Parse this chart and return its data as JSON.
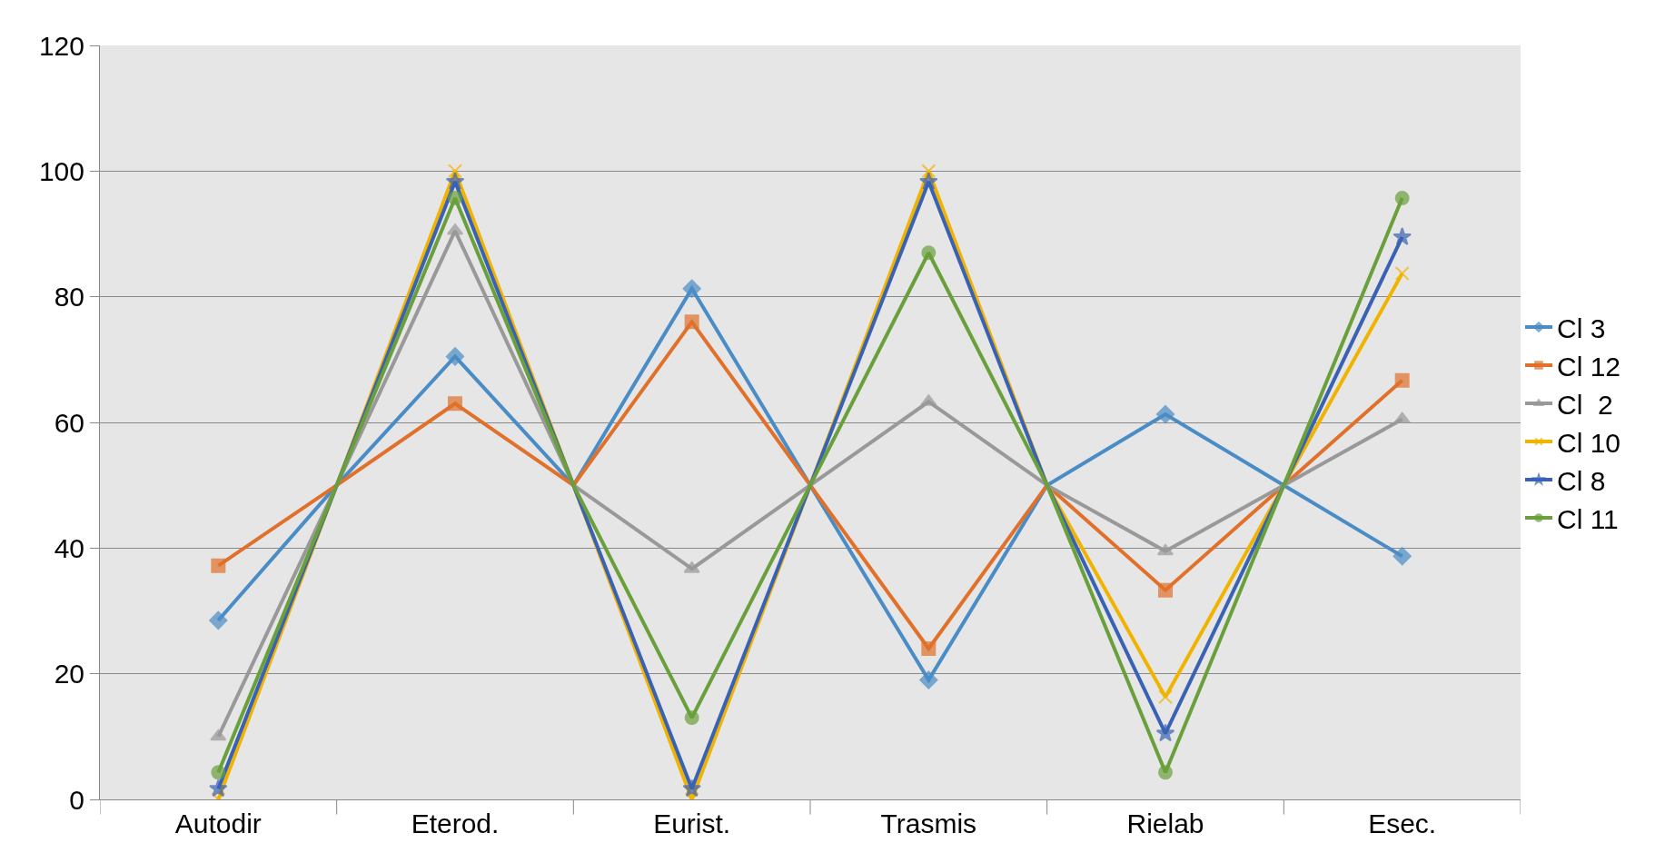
{
  "chart_data": {
    "type": "line",
    "categories": [
      "Autodir",
      null,
      "Eterod.",
      null,
      "Eurist.",
      null,
      "Trasmis",
      null,
      "Rielab",
      null,
      "Esec."
    ],
    "series": [
      {
        "name": "Cl 3",
        "color": "#4a8cc6",
        "marker": "diamond",
        "values": [
          28.5,
          50,
          70.5,
          50,
          81.3,
          50,
          19,
          50,
          61.3,
          50,
          38.7
        ]
      },
      {
        "name": "Cl 12",
        "color": "#e0702a",
        "marker": "square",
        "values": [
          37.2,
          50,
          63,
          50,
          76,
          50,
          24,
          50,
          33.3,
          50,
          66.7
        ]
      },
      {
        "name": "Cl  2",
        "color": "#999999",
        "marker": "triangle",
        "values": [
          10,
          50,
          90.5,
          50,
          36.7,
          50,
          63.3,
          50,
          39.5,
          50,
          60.5
        ]
      },
      {
        "name": "Cl 10",
        "color": "#f0b400",
        "marker": "cross",
        "values": [
          0,
          50,
          100,
          50,
          0,
          50,
          100,
          50,
          16.3,
          50,
          83.7
        ]
      },
      {
        "name": "Cl 8",
        "color": "#3a62b4",
        "marker": "star",
        "values": [
          1.7,
          50,
          98.3,
          50,
          1.7,
          50,
          98.3,
          50,
          10.5,
          50,
          89.5
        ]
      },
      {
        "name": "Cl 11",
        "color": "#6aa03c",
        "marker": "circle",
        "values": [
          4.3,
          50,
          95.7,
          50,
          13,
          50,
          87,
          50,
          4.3,
          50,
          95.7
        ]
      }
    ],
    "ylim": [
      0,
      120
    ],
    "yticks": [
      0,
      20,
      40,
      60,
      80,
      100,
      120
    ],
    "grid": "y",
    "legend": "right",
    "line_style": "solid"
  }
}
